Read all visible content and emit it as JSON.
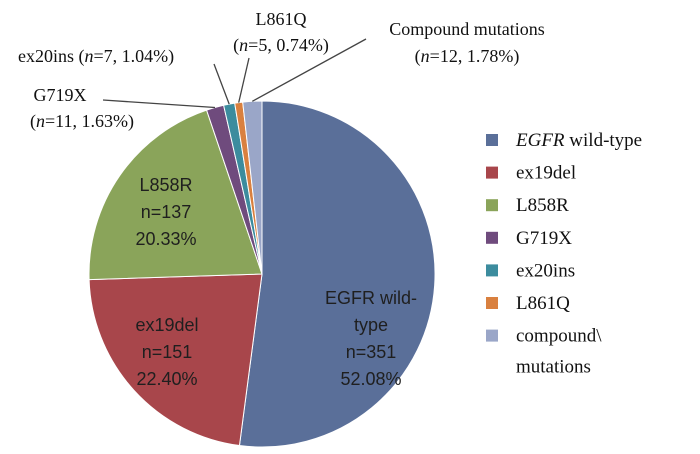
{
  "chart_data": {
    "type": "pie",
    "title": "",
    "series": [
      {
        "key": "wild_type",
        "legend": "EGFR wild-type",
        "legend_italic_part": "EGFR",
        "legend_rest": " wild-type",
        "inside_label_lines": [
          "EGFR wild-",
          "type",
          "n=351",
          "52.08%"
        ],
        "n": 351,
        "percent": 52.08,
        "color": "#5a6f99"
      },
      {
        "key": "ex19del",
        "legend": "ex19del",
        "inside_label_lines": [
          "ex19del",
          "n=151",
          "22.40%"
        ],
        "n": 151,
        "percent": 22.4,
        "color": "#a8464b"
      },
      {
        "key": "l858r",
        "legend": "L858R",
        "inside_label_lines": [
          "L858R",
          "n=137",
          "20.33%"
        ],
        "n": 137,
        "percent": 20.33,
        "color": "#8aa45a"
      },
      {
        "key": "g719x",
        "legend": "G719X",
        "callout_line1": "G719X",
        "callout_line2_prefix": "(",
        "callout_n_italic": "n",
        "callout_line2_suffix": "=11, 1.63%)",
        "n": 11,
        "percent": 1.63,
        "color": "#6f4b7d"
      },
      {
        "key": "ex20ins",
        "legend": "ex20ins",
        "callout_prefix": "ex20ins (",
        "callout_n_italic": "n",
        "callout_suffix": "=7, 1.04%)",
        "n": 7,
        "percent": 1.04,
        "color": "#3c8c9e"
      },
      {
        "key": "l861q",
        "legend": "L861Q",
        "callout_line1": "L861Q",
        "callout_line2_prefix": "(",
        "callout_n_italic": "n",
        "callout_line2_suffix": "=5, 0.74%)",
        "n": 5,
        "percent": 0.74,
        "color": "#d9803f"
      },
      {
        "key": "compound",
        "legend": "compound\\",
        "legend_line2": "mutations",
        "callout_line1": "Compound mutations",
        "callout_line2_prefix": "(",
        "callout_n_italic": "n",
        "callout_line2_suffix": "=12, 1.78%)",
        "n": 12,
        "percent": 1.78,
        "color": "#9aa6c8"
      }
    ],
    "legend_position": "right"
  }
}
